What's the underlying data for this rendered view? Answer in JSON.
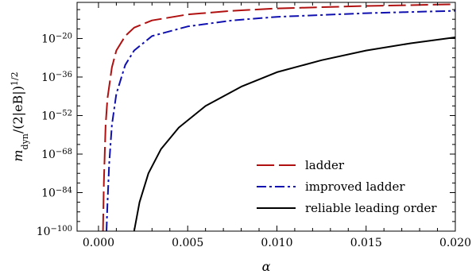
{
  "chart_data": {
    "type": "line",
    "xlabel": "α",
    "ylabel": {
      "m": "m",
      "sub": "dyn",
      "rest": "/(2|eB|)",
      "sup": "1/2"
    },
    "xlim": [
      -0.0012,
      0.02
    ],
    "ylim_exponent": [
      -100,
      -5
    ],
    "y_scale": "log",
    "x_ticks": [
      {
        "value": 0.0,
        "label": "0.000"
      },
      {
        "value": 0.005,
        "label": "0.005"
      },
      {
        "value": 0.01,
        "label": "0.010"
      },
      {
        "value": 0.015,
        "label": "0.015"
      },
      {
        "value": 0.02,
        "label": "0.020"
      }
    ],
    "y_ticks": [
      {
        "exp": -100,
        "base": "10",
        "sup": "−100"
      },
      {
        "exp": -84,
        "base": "10",
        "sup": "−84"
      },
      {
        "exp": -68,
        "base": "10",
        "sup": "−68"
      },
      {
        "exp": -52,
        "base": "10",
        "sup": "−52"
      },
      {
        "exp": -36,
        "base": "10",
        "sup": "−36"
      },
      {
        "exp": -20,
        "base": "10",
        "sup": "−20"
      }
    ],
    "legend_position": "bottom-right",
    "series": [
      {
        "name": "ladder",
        "color": "#b01010",
        "style": "dashed",
        "points": [
          [
            0.00025,
            -100
          ],
          [
            0.0003,
            -80
          ],
          [
            0.0004,
            -56
          ],
          [
            0.0005,
            -45
          ],
          [
            0.00075,
            -32
          ],
          [
            0.001,
            -25
          ],
          [
            0.0015,
            -19
          ],
          [
            0.002,
            -15.5
          ],
          [
            0.003,
            -12.5
          ],
          [
            0.005,
            -10
          ],
          [
            0.0075,
            -8.5
          ],
          [
            0.01,
            -7.5
          ],
          [
            0.015,
            -6.5
          ],
          [
            0.02,
            -5.8
          ]
        ]
      },
      {
        "name": "improved ladder",
        "color": "#1010b0",
        "style": "dashdot",
        "points": [
          [
            0.00045,
            -100
          ],
          [
            0.0005,
            -89
          ],
          [
            0.0006,
            -72
          ],
          [
            0.00075,
            -56
          ],
          [
            0.001,
            -43
          ],
          [
            0.0015,
            -31
          ],
          [
            0.002,
            -25
          ],
          [
            0.003,
            -19
          ],
          [
            0.005,
            -15
          ],
          [
            0.0075,
            -12.5
          ],
          [
            0.01,
            -11
          ],
          [
            0.015,
            -9.5
          ],
          [
            0.02,
            -8.5
          ]
        ]
      },
      {
        "name": "reliable leading order",
        "color": "#000000",
        "style": "solid",
        "points": [
          [
            0.002,
            -100
          ],
          [
            0.0023,
            -88
          ],
          [
            0.0028,
            -76
          ],
          [
            0.0035,
            -66
          ],
          [
            0.0045,
            -57
          ],
          [
            0.006,
            -48
          ],
          [
            0.008,
            -40
          ],
          [
            0.01,
            -34
          ],
          [
            0.0125,
            -29
          ],
          [
            0.015,
            -25
          ],
          [
            0.0175,
            -22
          ],
          [
            0.02,
            -19.5
          ]
        ]
      }
    ]
  }
}
